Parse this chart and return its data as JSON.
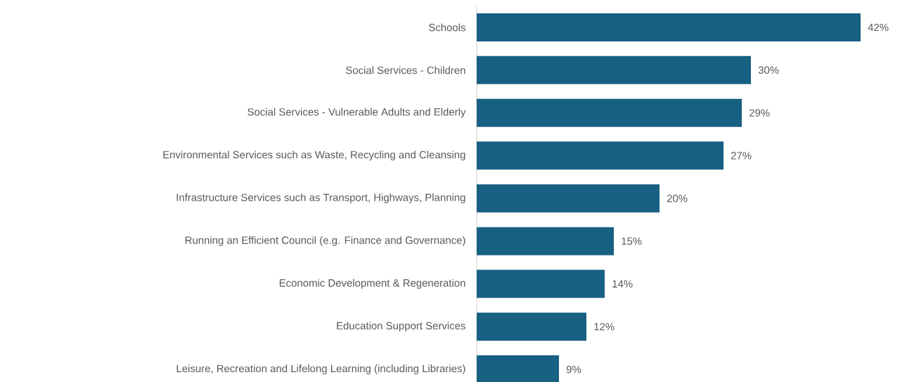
{
  "chart_data": {
    "type": "bar",
    "orientation": "horizontal",
    "categories": [
      "Schools",
      "Social Services - Children",
      "Social Services - Vulnerable Adults and Elderly",
      "Environmental Services such as Waste, Recycling and Cleansing",
      "Infrastructure Services such as Transport, Highways, Planning",
      "Running an Efficient Council (e.g. Finance and Governance)",
      "Economic Development & Regeneration",
      "Education Support Services",
      "Leisure, Recreation and Lifelong Learning (including Libraries)"
    ],
    "values": [
      42,
      30,
      29,
      27,
      20,
      15,
      14,
      12,
      9
    ],
    "value_labels": [
      "42%",
      "30%",
      "29%",
      "27%",
      "20%",
      "15%",
      "14%",
      "12%",
      "9%"
    ],
    "color": "#176082"
  }
}
